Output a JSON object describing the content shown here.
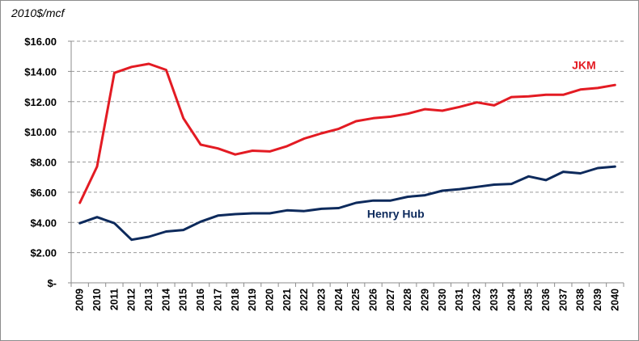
{
  "chart_data": {
    "type": "line",
    "unit_label": "2010$/mcf",
    "y_tick_labels": [
      "$-",
      "$2.00",
      "$4.00",
      "$6.00",
      "$8.00",
      "$10.00",
      "$12.00",
      "$14.00",
      "$16.00"
    ],
    "ylim": [
      0,
      16
    ],
    "grid": true,
    "x": [
      "2009",
      "2010",
      "2011",
      "2012",
      "2013",
      "2014",
      "2015",
      "2016",
      "2017",
      "2018",
      "2019",
      "2020",
      "2021",
      "2022",
      "2023",
      "2024",
      "2025",
      "2026",
      "2027",
      "2028",
      "2029",
      "2030",
      "2031",
      "2032",
      "2033",
      "2034",
      "2035",
      "2036",
      "2037",
      "2038",
      "2039",
      "2040"
    ],
    "series": [
      {
        "name": "JKM",
        "color": "#e31b23",
        "values": [
          5.3,
          7.7,
          13.9,
          14.3,
          14.5,
          14.1,
          10.9,
          9.15,
          8.9,
          8.5,
          8.75,
          8.7,
          9.05,
          9.55,
          9.9,
          10.2,
          10.7,
          10.9,
          11.0,
          11.2,
          11.5,
          11.4,
          11.65,
          11.95,
          11.75,
          12.3,
          12.35,
          12.45,
          12.45,
          12.8,
          12.9,
          13.1
        ]
      },
      {
        "name": "Henry Hub",
        "color": "#0d2a5c",
        "values": [
          3.95,
          4.35,
          3.95,
          2.85,
          3.05,
          3.4,
          3.5,
          4.05,
          4.45,
          4.55,
          4.6,
          4.6,
          4.8,
          4.75,
          4.9,
          4.95,
          5.3,
          5.45,
          5.45,
          5.7,
          5.8,
          6.1,
          6.2,
          6.35,
          6.5,
          6.55,
          7.05,
          6.8,
          7.35,
          7.25,
          7.6,
          7.7
        ]
      }
    ]
  }
}
